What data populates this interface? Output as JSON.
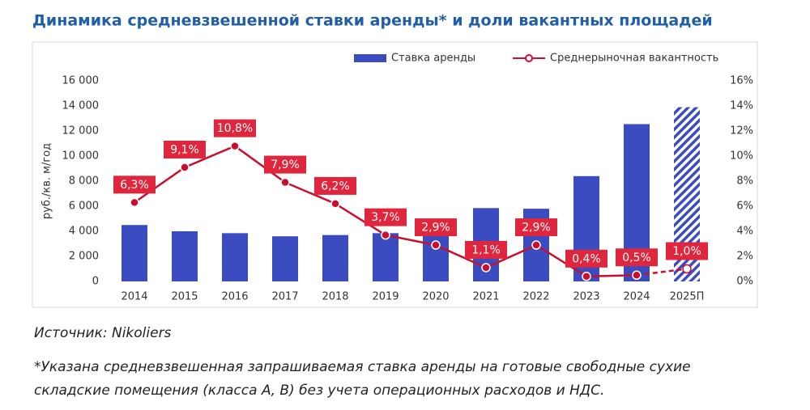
{
  "chart_data": {
    "type": "bar_line",
    "title": "Динамика средневзвешенной ставки аренды* и доли вакантных площадей",
    "y_label": "руб./кв. м/год",
    "categories": [
      "2014",
      "2015",
      "2016",
      "2017",
      "2018",
      "2019",
      "2020",
      "2021",
      "2022",
      "2023",
      "2024",
      "2025П"
    ],
    "series": [
      {
        "name": "Ставка аренды",
        "color": "#3a4cc0",
        "values": [
          4500,
          4000,
          3850,
          3600,
          3700,
          3850,
          3900,
          5850,
          5800,
          8400,
          12550,
          13900
        ]
      },
      {
        "name": "Среднерыночная вакантность",
        "color": "#c8102e",
        "axis": "y2",
        "values": [
          6.3,
          9.1,
          10.8,
          7.9,
          6.2,
          3.7,
          2.9,
          1.1,
          2.9,
          0.4,
          0.5,
          1.0
        ],
        "value_labels": [
          "6,3%",
          "9,1%",
          "10,8%",
          "7,9%",
          "6,2%",
          "3,7%",
          "2,9%",
          "1,1%",
          "2,9%",
          "0,4%",
          "0,5%",
          "1,0%"
        ]
      }
    ],
    "ylim": [
      0,
      16000
    ],
    "yticks": [
      {
        "value": 0,
        "label": "0"
      },
      {
        "value": 2000,
        "label": "2 000"
      },
      {
        "value": 4000,
        "label": "4 000"
      },
      {
        "value": 6000,
        "label": "6 000"
      },
      {
        "value": 8000,
        "label": "8 000"
      },
      {
        "value": 10000,
        "label": "10 000"
      },
      {
        "value": 12000,
        "label": "12 000"
      },
      {
        "value": 14000,
        "label": "14 000"
      },
      {
        "value": 16000,
        "label": "16 000"
      }
    ],
    "y2lim": [
      0,
      16
    ],
    "y2ticks": [
      {
        "value": 0,
        "label": "0%"
      },
      {
        "value": 2,
        "label": "2%"
      },
      {
        "value": 4,
        "label": "4%"
      },
      {
        "value": 6,
        "label": "6%"
      },
      {
        "value": 8,
        "label": "8%"
      },
      {
        "value": 10,
        "label": "10%"
      },
      {
        "value": 12,
        "label": "12%"
      },
      {
        "value": 14,
        "label": "14%"
      },
      {
        "value": 16,
        "label": "16%"
      }
    ],
    "grid": false,
    "legend": "top",
    "source": "Источник: Nikoliers",
    "note": "*Указана средневзвешенная запрашиваемая ставка аренды на готовые свободные сухие складские помещения (класса А, В) без учета операционных расходов и НДС."
  }
}
